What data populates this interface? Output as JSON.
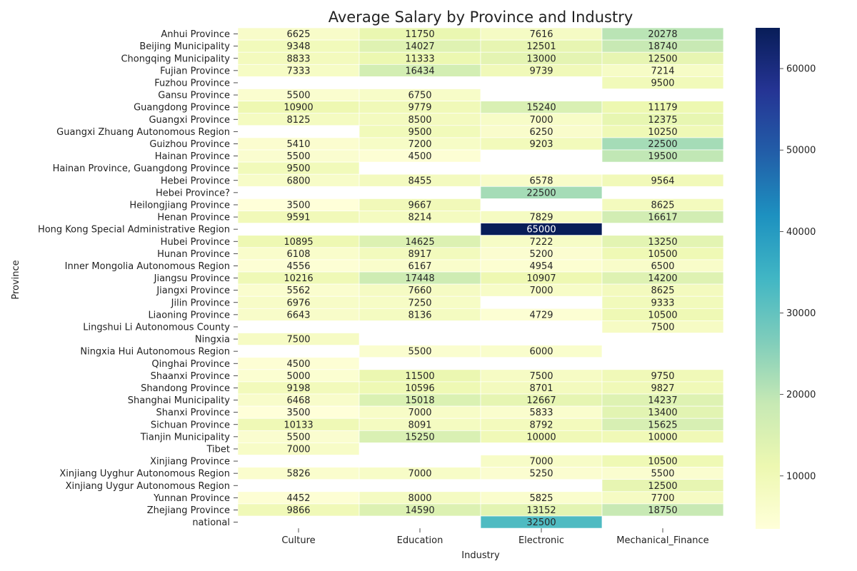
{
  "chart_data": {
    "type": "heatmap",
    "title": "Average Salary by Province and Industry",
    "xlabel": "Industry",
    "ylabel": "Province",
    "columns": [
      "Culture",
      "Education",
      "Electronic",
      "Mechanical_Finance"
    ],
    "rows": [
      "Anhui Province",
      "Beijing Municipality",
      "Chongqing Municipality",
      "Fujian Province",
      "Fuzhou Province",
      "Gansu Province",
      "Guangdong Province",
      "Guangxi Province",
      "Guangxi Zhuang Autonomous Region",
      "Guizhou Province",
      "Hainan Province",
      "Hainan Province, Guangdong Province",
      "Hebei Province",
      "Hebei Province?",
      "Heilongjiang Province",
      "Henan Province",
      "Hong Kong Special Administrative Region",
      "Hubei Province",
      "Hunan Province",
      "Inner Mongolia Autonomous Region",
      "Jiangsu Province",
      "Jiangxi Province",
      "Jilin Province",
      "Liaoning Province",
      "Lingshui Li Autonomous County",
      "Ningxia",
      "Ningxia Hui Autonomous Region",
      "Qinghai Province",
      "Shaanxi Province",
      "Shandong Province",
      "Shanghai Municipality",
      "Shanxi Province",
      "Sichuan Province",
      "Tianjin Municipality",
      "Tibet",
      "Xinjiang Province",
      "Xinjiang Uyghur Autonomous Region",
      "Xinjiang Uygur Autonomous Region",
      "Yunnan Province",
      "Zhejiang Province",
      "national"
    ],
    "values": [
      [
        6625,
        11750,
        7616,
        20278
      ],
      [
        9348,
        14027,
        12501,
        18740
      ],
      [
        8833,
        11333,
        13000,
        12500
      ],
      [
        7333,
        16434,
        9739,
        7214
      ],
      [
        null,
        null,
        null,
        9500
      ],
      [
        5500,
        6750,
        null,
        null
      ],
      [
        10900,
        9779,
        15240,
        11179
      ],
      [
        8125,
        8500,
        7000,
        12375
      ],
      [
        null,
        9500,
        6250,
        10250
      ],
      [
        5410,
        7200,
        9203,
        22500
      ],
      [
        5500,
        4500,
        null,
        19500
      ],
      [
        9500,
        null,
        null,
        null
      ],
      [
        6800,
        8455,
        6578,
        9564
      ],
      [
        null,
        null,
        22500,
        null
      ],
      [
        3500,
        9667,
        null,
        8625
      ],
      [
        9591,
        8214,
        7829,
        16617
      ],
      [
        null,
        null,
        65000,
        null
      ],
      [
        10895,
        14625,
        7222,
        13250
      ],
      [
        6108,
        8917,
        5200,
        10500
      ],
      [
        4556,
        6167,
        4954,
        6500
      ],
      [
        10216,
        17448,
        10907,
        14200
      ],
      [
        5562,
        7660,
        7000,
        8625
      ],
      [
        6976,
        7250,
        null,
        9333
      ],
      [
        6643,
        8136,
        4729,
        10500
      ],
      [
        null,
        null,
        null,
        7500
      ],
      [
        7500,
        null,
        null,
        null
      ],
      [
        null,
        5500,
        6000,
        null
      ],
      [
        4500,
        null,
        null,
        null
      ],
      [
        5000,
        11500,
        7500,
        9750
      ],
      [
        9198,
        10596,
        8701,
        9827
      ],
      [
        6468,
        15018,
        12667,
        14237
      ],
      [
        3500,
        7000,
        5833,
        13400
      ],
      [
        10133,
        8091,
        8792,
        15625
      ],
      [
        5500,
        15250,
        10000,
        10000
      ],
      [
        7000,
        null,
        null,
        null
      ],
      [
        null,
        null,
        7000,
        10500
      ],
      [
        5826,
        7000,
        5250,
        5500
      ],
      [
        null,
        null,
        null,
        12500
      ],
      [
        4452,
        8000,
        5825,
        7700
      ],
      [
        9866,
        14590,
        13152,
        18750
      ],
      [
        null,
        null,
        32500,
        null
      ]
    ],
    "colorbar": {
      "colormap": "YlGnBu",
      "vmin": 3500,
      "vmax": 65000,
      "ticks": [
        10000,
        20000,
        30000,
        40000,
        50000,
        60000
      ]
    },
    "legend": "colorbar-right",
    "grid": false
  }
}
